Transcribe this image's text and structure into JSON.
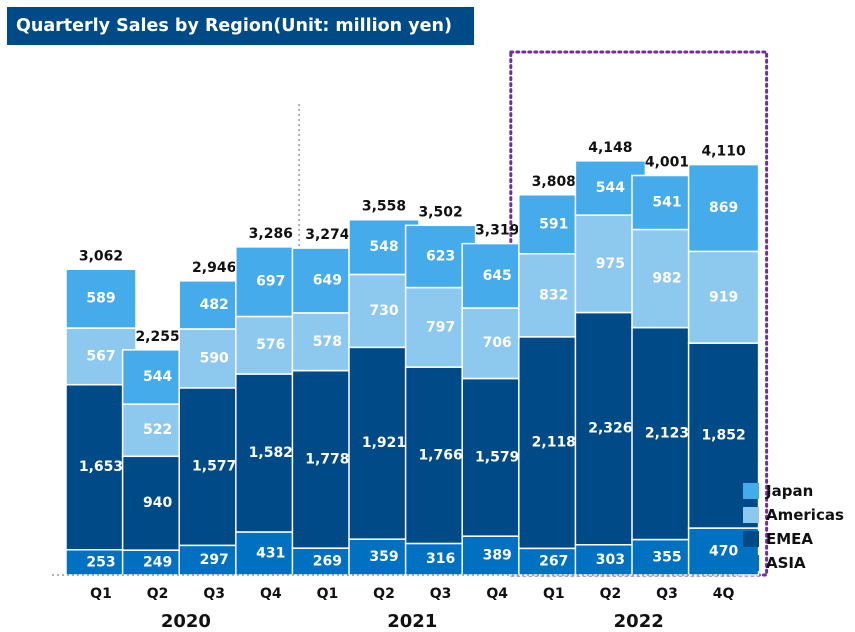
{
  "chart_data": {
    "type": "bar",
    "stacked": true,
    "title": "Quarterly Sales by Region(Unit: million yen)",
    "categories": [
      "Q1",
      "Q2",
      "Q3",
      "Q4",
      "Q1",
      "Q2",
      "Q3",
      "Q4",
      "Q1",
      "Q2",
      "Q3",
      "4Q"
    ],
    "groups": [
      {
        "label": "2020",
        "count": 4
      },
      {
        "label": "2021",
        "count": 4
      },
      {
        "label": "2022",
        "count": 4
      }
    ],
    "series": [
      {
        "name": "ASIA",
        "color": "#0070c0",
        "values": [
          253,
          249,
          297,
          431,
          269,
          359,
          316,
          389,
          267,
          303,
          355,
          470
        ]
      },
      {
        "name": "EMEA",
        "color": "#004b87",
        "values": [
          1653,
          940,
          1577,
          1582,
          1778,
          1921,
          1766,
          1579,
          2118,
          2326,
          2123,
          1852
        ]
      },
      {
        "name": "Americas",
        "color": "#8dc8ef",
        "values": [
          567,
          522,
          590,
          576,
          578,
          730,
          797,
          706,
          832,
          975,
          982,
          919
        ]
      },
      {
        "name": "Japan",
        "color": "#45abeb",
        "values": [
          589,
          544,
          482,
          697,
          649,
          548,
          623,
          645,
          591,
          544,
          541,
          869
        ]
      }
    ],
    "totals": [
      3062,
      2255,
      2946,
      3286,
      3274,
      3558,
      3502,
      3319,
      3808,
      4148,
      4001,
      4110
    ],
    "legend": [
      "Japan",
      "Americas",
      "EMEA",
      "ASIA"
    ],
    "legend_position": "bottom-right",
    "highlight_group": "2022",
    "ylim": [
      0,
      4300
    ],
    "grid": false
  }
}
